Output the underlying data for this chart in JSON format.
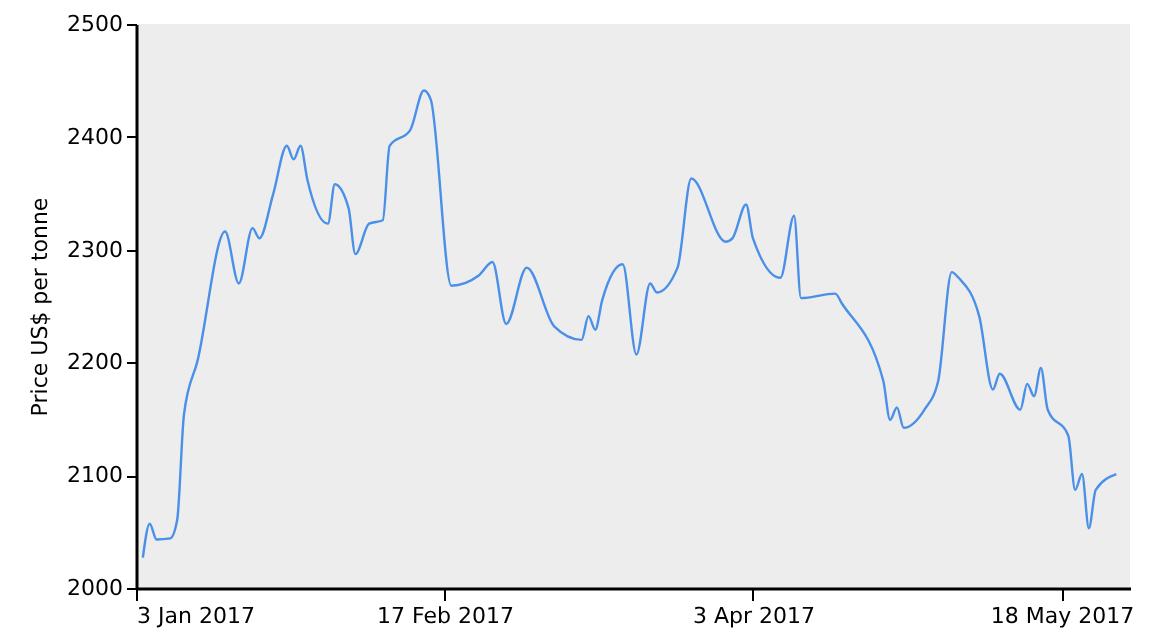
{
  "chart_data": {
    "type": "line",
    "ylabel": "Price US$ per tonne",
    "x": [
      "2017-01-04",
      "2017-01-05",
      "2017-01-06",
      "2017-01-08",
      "2017-01-09",
      "2017-01-10",
      "2017-01-12",
      "2017-01-16",
      "2017-01-18",
      "2017-01-20",
      "2017-01-21",
      "2017-01-23",
      "2017-01-25",
      "2017-01-26",
      "2017-01-27",
      "2017-01-28",
      "2017-01-31",
      "2017-02-01",
      "2017-02-03",
      "2017-02-04",
      "2017-02-06",
      "2017-02-08",
      "2017-02-09",
      "2017-02-12",
      "2017-02-14",
      "2017-02-15",
      "2017-02-18",
      "2017-02-22",
      "2017-02-24",
      "2017-02-26",
      "2017-03-01",
      "2017-03-05",
      "2017-03-09",
      "2017-03-10",
      "2017-03-11",
      "2017-03-12",
      "2017-03-15",
      "2017-03-17",
      "2017-03-19",
      "2017-03-20",
      "2017-03-23",
      "2017-03-25",
      "2017-03-30",
      "2017-03-31",
      "2017-04-02",
      "2017-04-03",
      "2017-04-07",
      "2017-04-09",
      "2017-04-10",
      "2017-04-15",
      "2017-04-16",
      "2017-04-22",
      "2017-04-23",
      "2017-04-24",
      "2017-04-25",
      "2017-04-28",
      "2017-04-30",
      "2017-05-02",
      "2017-05-03",
      "2017-05-06",
      "2017-05-08",
      "2017-05-09",
      "2017-05-12",
      "2017-05-13",
      "2017-05-14",
      "2017-05-15",
      "2017-05-16",
      "2017-05-19",
      "2017-05-20",
      "2017-05-21",
      "2017-05-22",
      "2017-05-23",
      "2017-05-26"
    ],
    "series": [
      {
        "color": "#4a8fe8",
        "values": [
          2027,
          2057,
          2043,
          2044,
          2060,
          2154,
          2202,
          2316,
          2270,
          2319,
          2310,
          2349,
          2392,
          2380,
          2392,
          2362,
          2323,
          2358,
          2337,
          2296,
          2323,
          2326,
          2392,
          2406,
          2441,
          2433,
          2268,
          2277,
          2289,
          2234,
          2284,
          2232,
          2220,
          2241,
          2229,
          2255,
          2287,
          2207,
          2270,
          2262,
          2284,
          2363,
          2307,
          2310,
          2340,
          2310,
          2275,
          2330,
          2257,
          2261,
          2252,
          2184,
          2149,
          2160,
          2142,
          2158,
          2183,
          2280,
          2275,
          2241,
          2176,
          2190,
          2158,
          2181,
          2170,
          2195,
          2158,
          2135,
          2087,
          2101,
          2053,
          2087,
          2101
        ]
      }
    ],
    "xlim": [
      "2017-01-03",
      "2017-05-28"
    ],
    "xticks": [
      {
        "value": "2017-01-03",
        "label": "3 Jan 2017"
      },
      {
        "value": "2017-02-17",
        "label": "17 Feb 2017"
      },
      {
        "value": "2017-04-03",
        "label": "3 Apr 2017"
      },
      {
        "value": "2017-05-18",
        "label": "18 May 2017"
      }
    ],
    "ylim": [
      2000,
      2500
    ],
    "yticks": [
      2000,
      2100,
      2200,
      2300,
      2400,
      2500
    ],
    "grid": false,
    "marker": "none",
    "line_style": "solid"
  }
}
